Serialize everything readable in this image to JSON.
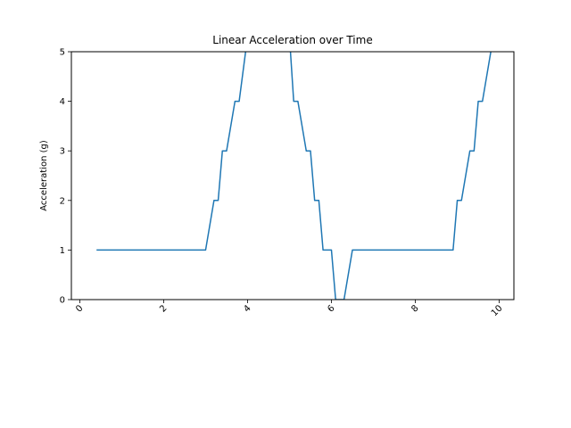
{
  "chart_data": {
    "type": "line",
    "title": "Linear Acceleration over Time",
    "xlabel": "",
    "ylabel": "Acceleration (g)",
    "xlim": [
      -0.2,
      10.35
    ],
    "ylim": [
      0,
      5
    ],
    "x_ticks": [
      0,
      2,
      4,
      6,
      8,
      10
    ],
    "x_tick_labels": [
      "0",
      "2",
      "4",
      "6",
      "8",
      "10"
    ],
    "y_ticks": [
      0,
      1,
      2,
      3,
      4,
      5
    ],
    "y_tick_labels": [
      "0",
      "1",
      "2",
      "3",
      "4",
      "5"
    ],
    "grid": false,
    "line_color": "#1f77b4",
    "series": [
      {
        "x": [
          0.4,
          3.0,
          3.2,
          3.3,
          3.4,
          3.5,
          3.7,
          3.8,
          4.0,
          4.3,
          4.6,
          5.0,
          5.1,
          5.2,
          5.4,
          5.5,
          5.6,
          5.7,
          5.8,
          6.0,
          6.1,
          6.2,
          6.3,
          6.5,
          8.9,
          9.0,
          9.1,
          9.3,
          9.4,
          9.5,
          9.6,
          9.8
        ],
        "y": [
          1,
          1,
          2,
          2,
          3,
          3,
          4,
          4,
          5.3,
          6,
          6,
          5.3,
          4,
          4,
          3,
          3,
          2,
          2,
          1,
          1,
          0,
          0,
          0,
          1,
          1,
          2,
          2,
          3,
          3,
          4,
          4,
          5
        ]
      }
    ]
  }
}
